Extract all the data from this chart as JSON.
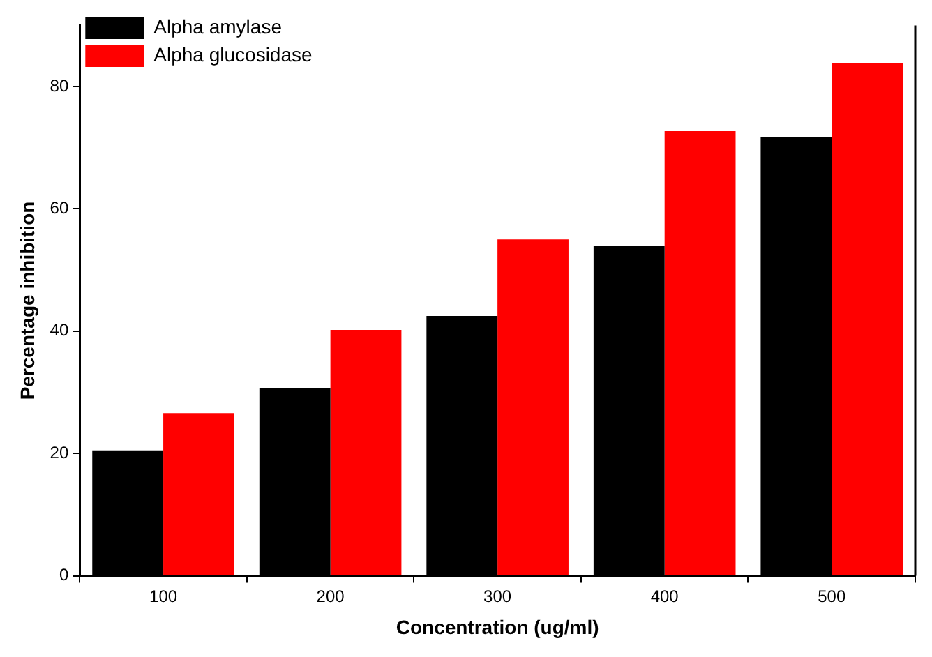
{
  "chart_data": {
    "type": "bar",
    "xlabel": "Concentration (ug/ml)",
    "ylabel": "Percentage inhibition",
    "categories": [
      "100",
      "200",
      "300",
      "400",
      "500"
    ],
    "series": [
      {
        "name": "Alpha amylase",
        "color": "#000000",
        "values": [
          20.5,
          30.7,
          42.5,
          53.9,
          71.8
        ]
      },
      {
        "name": "Alpha glucosidase",
        "color": "#ff0000",
        "values": [
          26.6,
          40.2,
          55.0,
          72.7,
          83.9
        ]
      }
    ],
    "ylim": [
      0,
      90
    ],
    "yticks": [
      0,
      20,
      40,
      60,
      80
    ],
    "grid": false,
    "legend": "top left"
  }
}
